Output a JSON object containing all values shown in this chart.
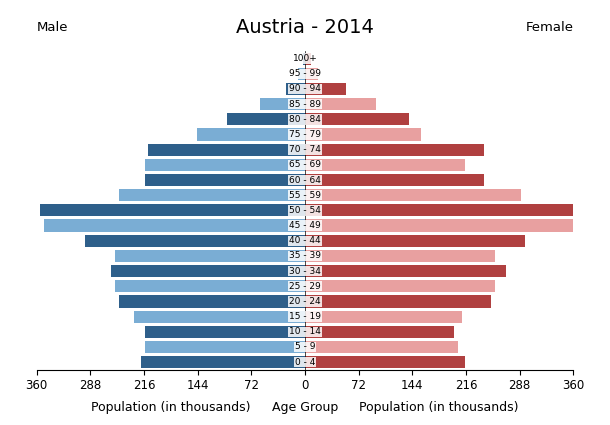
{
  "title": "Austria - 2014",
  "male_label": "Male",
  "female_label": "Female",
  "xlabel_left": "Population (in thousands)",
  "xlabel_center": "Age Group",
  "xlabel_right": "Population (in thousands)",
  "age_groups": [
    "0 - 4",
    "5 - 9",
    "10 - 14",
    "15 - 19",
    "20 - 24",
    "25 - 29",
    "30 - 34",
    "35 - 39",
    "40 - 44",
    "45 - 49",
    "50 - 54",
    "55 - 59",
    "60 - 64",
    "65 - 69",
    "70 - 74",
    "75 - 79",
    "80 - 84",
    "85 - 89",
    "90 - 94",
    "95 - 99",
    "100+"
  ],
  "male_values": [
    220,
    215,
    215,
    230,
    250,
    255,
    260,
    255,
    295,
    350,
    355,
    250,
    215,
    215,
    210,
    145,
    105,
    60,
    25,
    10,
    3
  ],
  "female_values": [
    215,
    205,
    200,
    210,
    250,
    255,
    270,
    255,
    295,
    365,
    360,
    290,
    240,
    215,
    240,
    155,
    140,
    95,
    55,
    18,
    8
  ],
  "male_dark_color": "#2e5f8a",
  "male_light_color": "#7aadd4",
  "female_dark_color": "#b04040",
  "female_light_color": "#e8a0a0",
  "background_color": "#ffffff",
  "xlim": 360,
  "title_fontsize": 14,
  "axis_label_fontsize": 9,
  "tick_fontsize": 8.5,
  "bar_height": 0.8
}
